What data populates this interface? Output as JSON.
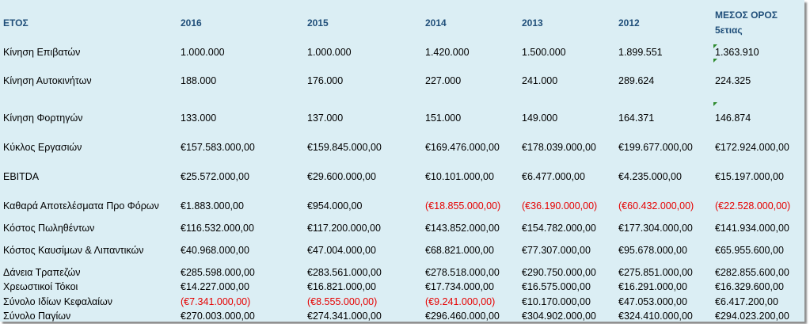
{
  "header": {
    "label": "ΕΤΟΣ",
    "years": [
      "2016",
      "2015",
      "2014",
      "2013",
      "2012"
    ],
    "avg_line1": "ΜΕΣΟΣ ΟΡΟΣ",
    "avg_line2": "5ετιας"
  },
  "colors": {
    "background": "#dbeef4",
    "header_text": "#1f4e79",
    "negative": "#e60000"
  },
  "rows": [
    {
      "label": "Κίνηση Επιβατών",
      "values": [
        "1.000.000",
        "1.000.000",
        "1.420.000",
        "1.500.000",
        "1.899.551",
        "1.363.910"
      ],
      "neg": [
        false,
        false,
        false,
        false,
        false,
        false
      ]
    },
    {
      "label": "Κίνηση Αυτοκινήτων",
      "values": [
        "188.000",
        "176.000",
        "227.000",
        "241.000",
        "289.624",
        "224.325"
      ],
      "neg": [
        false,
        false,
        false,
        false,
        false,
        false
      ]
    },
    {
      "label": "Κίνηση Φορτηγών",
      "values": [
        "133.000",
        "137.000",
        "151.000",
        "149.000",
        "164.371",
        "146.874"
      ],
      "neg": [
        false,
        false,
        false,
        false,
        false,
        false
      ]
    },
    {
      "label": "Κύκλος Εργασιών",
      "values": [
        "€157.583.000,00",
        "€159.845.000,00",
        "€169.476.000,00",
        "€178.039.000,00",
        "€199.677.000,00",
        "€172.924.000,00"
      ],
      "neg": [
        false,
        false,
        false,
        false,
        false,
        false
      ]
    },
    {
      "label": "EBITDA",
      "values": [
        "€25.572.000,00",
        "€29.600.000,00",
        "€10.101.000,00",
        "€6.477.000,00",
        "€4.235.000,00",
        "€15.197.000,00"
      ],
      "neg": [
        false,
        false,
        false,
        false,
        false,
        false
      ]
    },
    {
      "label": "Καθαρά Αποτελέσματα Προ Φόρων",
      "values": [
        "€1.883.000,00",
        "€954.000,00",
        "(€18.855.000,00)",
        "(€36.190.000,00)",
        "(€60.432.000,00)",
        "(€22.528.000,00)"
      ],
      "neg": [
        false,
        false,
        true,
        true,
        true,
        true
      ]
    },
    {
      "label": "Κόστος Πωληθέντων",
      "values": [
        "€116.532.000,00",
        "€117.200.000,00",
        "€143.852.000,00",
        "€154.782.000,00",
        "€177.304.000,00",
        "€141.934.000,00"
      ],
      "neg": [
        false,
        false,
        false,
        false,
        false,
        false
      ]
    },
    {
      "label": "Κόστος Καυσίμων & Λιπαντικών",
      "values": [
        "€40.968.000,00",
        "€47.004.000,00",
        "€68.821.000,00",
        "€77.307.000,00",
        "€95.678.000,00",
        "€65.955.600,00"
      ],
      "neg": [
        false,
        false,
        false,
        false,
        false,
        false
      ]
    },
    {
      "label": "Δάνεια Τραπεζών",
      "values": [
        "€285.598.000,00",
        "€283.561.000,00",
        "€278.518.000,00",
        "€290.750.000,00",
        "€275.851.000,00",
        "€282.855.600,00"
      ],
      "neg": [
        false,
        false,
        false,
        false,
        false,
        false
      ]
    },
    {
      "label": "Χρεωστικοί Τόκοι",
      "values": [
        "€14.227.000,00",
        "€16.821.000,00",
        "€17.734.000,00",
        "€16.575.000,00",
        "€16.291.000,00",
        "€16.329.600,00"
      ],
      "neg": [
        false,
        false,
        false,
        false,
        false,
        false
      ]
    },
    {
      "label": "Σύνολο Ιδίων Κεφαλαίων",
      "values": [
        "(€7.341.000,00)",
        "(€8.555.000,00)",
        "(€9.241.000,00)",
        "€10.170.000,00",
        "€47.053.000,00",
        "€6.417.200,00"
      ],
      "neg": [
        true,
        true,
        true,
        false,
        false,
        false
      ]
    },
    {
      "label": "Σύνολο Παγίων",
      "values": [
        "€270.003.000,00",
        "€274.341.000,00",
        "€296.460.000,00",
        "€304.902.000,00",
        "€324.410.000,00",
        "€294.023.200,00"
      ],
      "neg": [
        false,
        false,
        false,
        false,
        false,
        false
      ]
    }
  ]
}
